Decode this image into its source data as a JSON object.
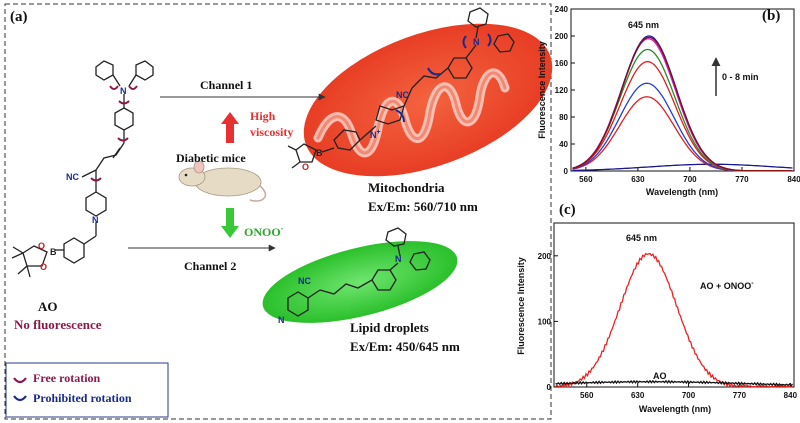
{
  "panel_a": {
    "label": "(a)",
    "channel1": "Channel 1",
    "channel2": "Channel 2",
    "high": "High",
    "viscosity": "viscosity",
    "onoo": "ONOO",
    "onoo_sup": "-",
    "mouse_label": "Diabetic mice",
    "probe_name": "AO",
    "probe_note": "No fluorescence",
    "mito_label": "Mitochondria",
    "mito_exem": "Ex/Em:  560/710 nm",
    "lipid_label": "Lipid droplets",
    "lipid_exem": "Ex/Em: 450/645 nm",
    "legend": [
      {
        "label": "Free rotation",
        "color": "#8b1a4a"
      },
      {
        "label": "Prohibited rotation",
        "color": "#1a2a8b"
      }
    ],
    "chem_atoms": {
      "n": "N",
      "nplus": "N",
      "plus": "+",
      "cn": "NC",
      "b": "B",
      "o": "O"
    },
    "colors": {
      "mito": "#e8432b",
      "lipid": "#22c322",
      "high_arrow": "#e83030",
      "onoo_arrow": "#38c838",
      "text_red": "#e83030",
      "text_green": "#2aa82a",
      "probe_note": "#8b1a4a"
    }
  },
  "panel_b": {
    "label": "(b)",
    "peak_label": "645 nm",
    "time_label": "0 - 8 min",
    "chart_data": {
      "type": "line",
      "xlabel": "Wavelength (nm)",
      "ylabel": "Fluorescence Intensity",
      "xlim": [
        540,
        840
      ],
      "ylim": [
        0,
        240
      ],
      "xticks": [
        "560",
        "630",
        "700",
        "770",
        "840"
      ],
      "yticks": [
        "0",
        "40",
        "80",
        "120",
        "160",
        "200",
        "240"
      ],
      "series": [
        {
          "color": "#1a1a8c",
          "peak": 10,
          "peak_x": 730,
          "width": 120
        },
        {
          "color": "#e02020",
          "peak": 110,
          "peak_x": 642,
          "width": 52
        },
        {
          "color": "#1f3fd8",
          "peak": 130,
          "peak_x": 642,
          "width": 52
        },
        {
          "color": "#e02020",
          "peak": 162,
          "peak_x": 643,
          "width": 52
        },
        {
          "color": "#2a8a2a",
          "peak": 180,
          "peak_x": 643,
          "width": 52
        },
        {
          "color": "#d020d0",
          "peak": 196,
          "peak_x": 644,
          "width": 52
        },
        {
          "color": "#2020a0",
          "peak": 200,
          "peak_x": 645,
          "width": 52
        },
        {
          "color": "#8b1010",
          "peak": 198,
          "peak_x": 645,
          "width": 52
        }
      ]
    }
  },
  "panel_c": {
    "label": "(c)",
    "peak_label": "645 nm",
    "series_label_red": "AO + ONOO",
    "series_label_red_sup": "-",
    "series_label_black": "AO",
    "chart_data": {
      "type": "line",
      "xlabel": "Wavelength (nm)",
      "ylabel": "Fluorescence Intensity",
      "xlim": [
        515,
        845
      ],
      "ylim": [
        0,
        250
      ],
      "xticks": [
        "560",
        "630",
        "700",
        "770",
        "840"
      ],
      "yticks": [
        "0",
        "100",
        "200"
      ],
      "series": [
        {
          "color": "#ee2020",
          "peak": 203,
          "peak_x": 645,
          "width": 55
        },
        {
          "color": "#111111",
          "peak": 8,
          "peak_x": 650,
          "width": 200
        }
      ]
    }
  }
}
